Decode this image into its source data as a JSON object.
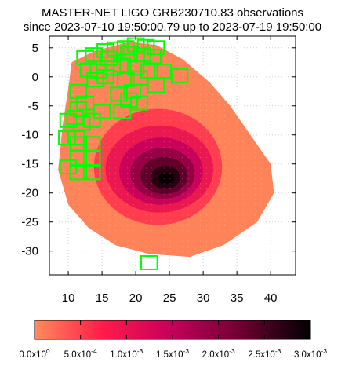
{
  "chart_data": {
    "type": "heatmap",
    "title_line1": "MASTER-NET LIGO GRB230710.83 observations",
    "title_line2": "since 2023-07-10 19:50:00.79 up to 2023-07-19 19:50:00",
    "xlabel": "",
    "ylabel": "",
    "xlim": [
      7.2,
      43.7
    ],
    "ylim": [
      -34.1,
      7.0
    ],
    "x_ticks": [
      10,
      15,
      20,
      25,
      30,
      35,
      40
    ],
    "y_ticks": [
      5,
      0,
      -5,
      -10,
      -15,
      -20,
      -25,
      -30
    ],
    "grid": true,
    "colorbar": {
      "min": 0,
      "max": 0.003,
      "ticks": [
        "0.0x10^0",
        "5.0x10^-4",
        "1.0x10^-3",
        "1.5x10^-3",
        "2.0x10^-3",
        "2.5x10^-3",
        "3.0x10^-3"
      ],
      "colors": [
        "#ff8c5a",
        "#ff1a4a",
        "#c4005c",
        "#6b0030",
        "#000000"
      ]
    },
    "probability_region": {
      "outline": [
        [
          10.5,
          2.5
        ],
        [
          14,
          4.5
        ],
        [
          19,
          6
        ],
        [
          23,
          5.5
        ],
        [
          27,
          3
        ],
        [
          31,
          -1
        ],
        [
          34,
          -5
        ],
        [
          37,
          -10
        ],
        [
          40,
          -15
        ],
        [
          40.5,
          -20
        ],
        [
          38,
          -25
        ],
        [
          33,
          -29
        ],
        [
          28,
          -31
        ],
        [
          22,
          -30.5
        ],
        [
          17,
          -29
        ],
        [
          13,
          -26
        ],
        [
          10,
          -22
        ],
        [
          8.5,
          -16
        ],
        [
          9.2,
          -8
        ],
        [
          10,
          -2
        ]
      ],
      "peak": {
        "x": 24.5,
        "y": -17.5,
        "value": 0.003
      }
    },
    "observations": [
      {
        "x": 12.5,
        "y": 3.3
      },
      {
        "x": 13.8,
        "y": 3.8
      },
      {
        "x": 15.5,
        "y": 4.5
      },
      {
        "x": 17.0,
        "y": 4.8
      },
      {
        "x": 18.5,
        "y": 5.0
      },
      {
        "x": 20.0,
        "y": 5.5
      },
      {
        "x": 21.5,
        "y": 5.2
      },
      {
        "x": 23.0,
        "y": 5.0
      },
      {
        "x": 19.0,
        "y": 4.0
      },
      {
        "x": 21.0,
        "y": 3.8
      },
      {
        "x": 16.0,
        "y": 3.2
      },
      {
        "x": 22.5,
        "y": 3.5
      },
      {
        "x": 13.0,
        "y": 1.2
      },
      {
        "x": 14.5,
        "y": 1.0
      },
      {
        "x": 16.5,
        "y": 1.5
      },
      {
        "x": 18.0,
        "y": 2.0
      },
      {
        "x": 20.0,
        "y": 1.5
      },
      {
        "x": 22.0,
        "y": 1.0
      },
      {
        "x": 24.0,
        "y": 1.0
      },
      {
        "x": 26.5,
        "y": 0.2
      },
      {
        "x": 14.0,
        "y": -0.5
      },
      {
        "x": 15.5,
        "y": 0.0
      },
      {
        "x": 18.5,
        "y": -0.5
      },
      {
        "x": 20.5,
        "y": -0.2
      },
      {
        "x": 23.0,
        "y": -1.5
      },
      {
        "x": 19.5,
        "y": -2.5
      },
      {
        "x": 17.5,
        "y": -3.0
      },
      {
        "x": 11.5,
        "y": -2.5
      },
      {
        "x": 12.5,
        "y": -4.5
      },
      {
        "x": 11.5,
        "y": -5.5
      },
      {
        "x": 19.0,
        "y": -4.0
      },
      {
        "x": 20.5,
        "y": -4.5
      },
      {
        "x": 18.0,
        "y": -6.0
      },
      {
        "x": 15.0,
        "y": -6.0
      },
      {
        "x": 11.0,
        "y": -7.0
      },
      {
        "x": 12.0,
        "y": -8.0
      },
      {
        "x": 10.0,
        "y": -7.5
      },
      {
        "x": 13.5,
        "y": -7.5
      },
      {
        "x": 9.8,
        "y": -10.5
      },
      {
        "x": 11.2,
        "y": -10.5
      },
      {
        "x": 11.5,
        "y": -11.5
      },
      {
        "x": 13.5,
        "y": -11.5
      },
      {
        "x": 11.5,
        "y": -14.0
      },
      {
        "x": 13.5,
        "y": -14.0
      },
      {
        "x": 10.0,
        "y": -15.5
      },
      {
        "x": 11.5,
        "y": -16.5
      },
      {
        "x": 13.5,
        "y": -16.5
      },
      {
        "x": 22.0,
        "y": -32.0
      }
    ],
    "obs_box": {
      "w": 2.4,
      "h": 2.3
    }
  }
}
